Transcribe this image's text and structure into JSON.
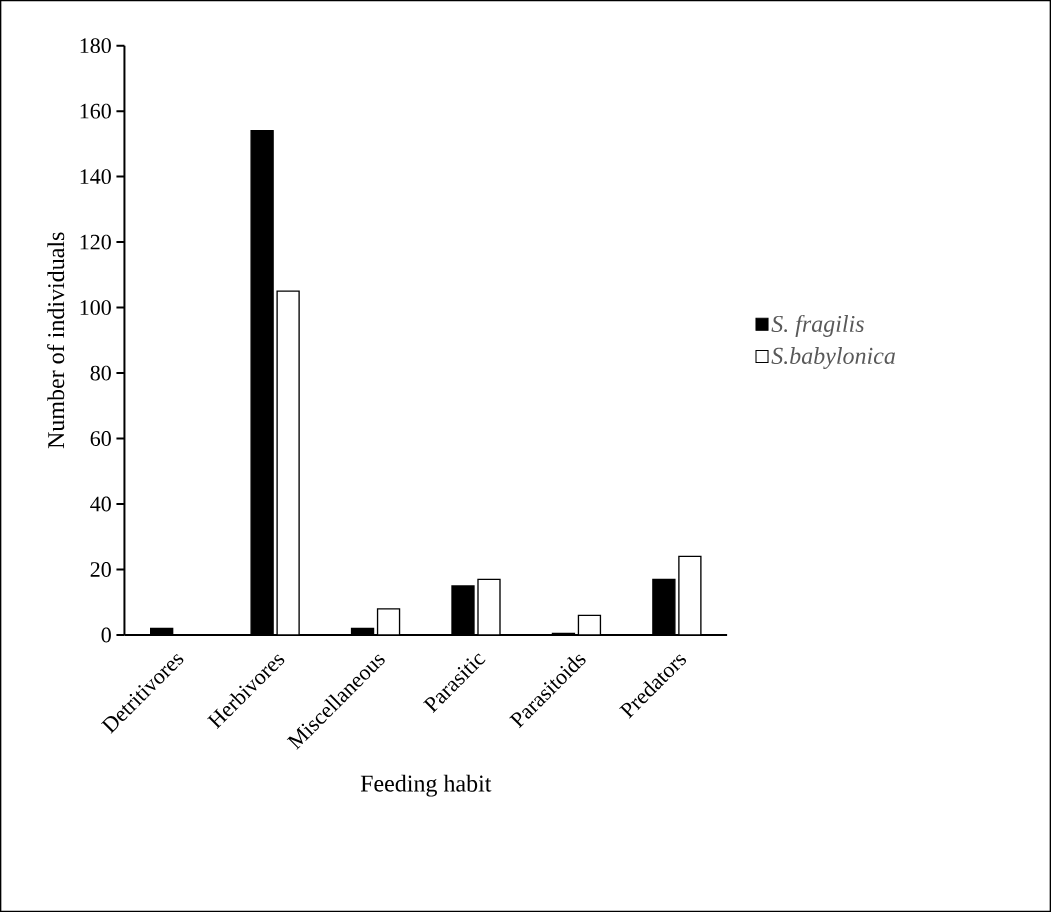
{
  "chart_data": {
    "type": "bar",
    "xlabel": "Feeding habit",
    "ylabel": "Number of individuals",
    "categories": [
      "Detritivores",
      "Herbivores",
      "Miscellaneous",
      "Parasitic",
      "Parasitoids",
      "Predators"
    ],
    "series": [
      {
        "name": "S. fragilis",
        "color": "#000000",
        "values": [
          2,
          154,
          2,
          15,
          0.5,
          17
        ]
      },
      {
        "name": "S.babylonica",
        "color": "#ffffff",
        "values": [
          null,
          105,
          8,
          17,
          6,
          24
        ]
      }
    ],
    "ylim": [
      0,
      180
    ],
    "yticks": [
      0,
      20,
      40,
      60,
      80,
      100,
      120,
      140,
      160,
      180
    ],
    "legend": "right"
  }
}
